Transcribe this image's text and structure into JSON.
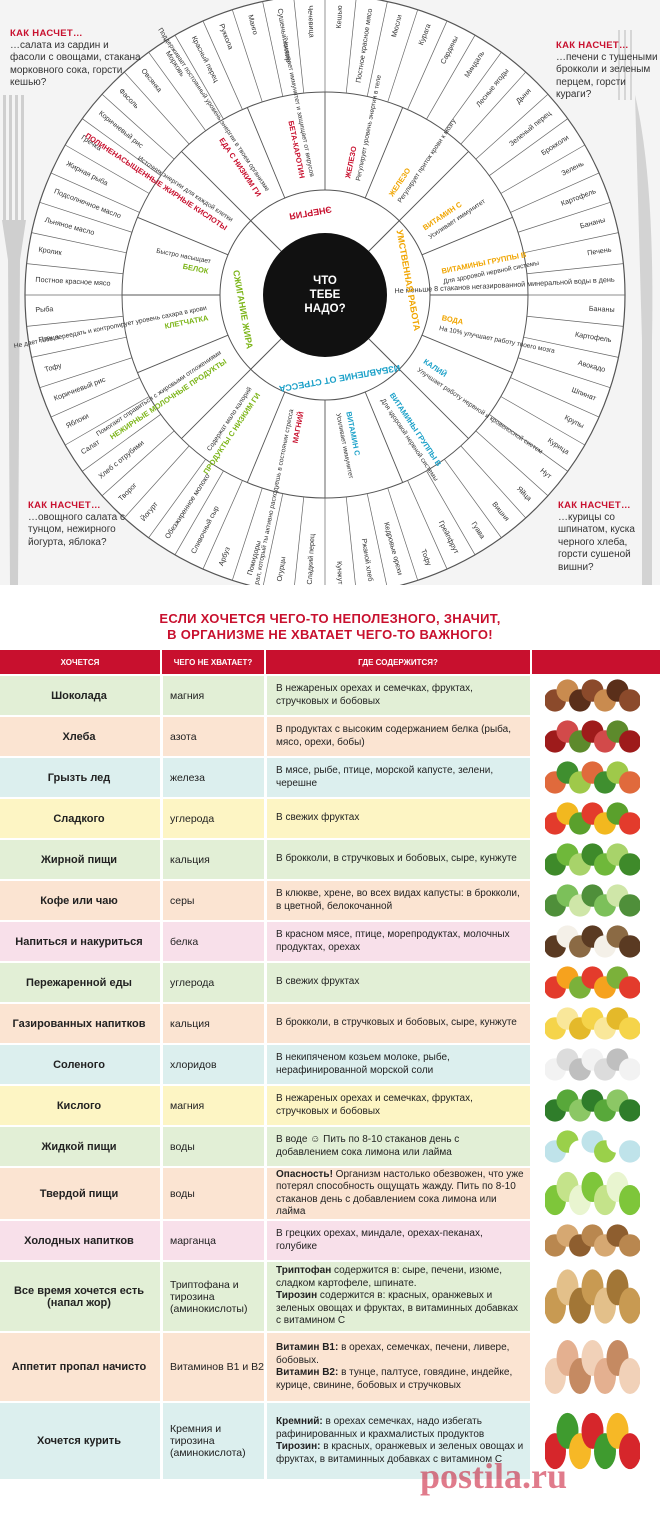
{
  "wheel": {
    "center": [
      "ЧТО",
      "ТЕБЕ",
      "НАДО?"
    ],
    "categories": [
      "УМСТВЕННАЯ РАБОТА",
      "ИЗБАВЛЕНИЕ ОТ СТРЕССА",
      "СЖИГАНИЕ ЖИРА",
      "ЭНЕРГИЯ"
    ],
    "corners": {
      "tl": {
        "title": "КАК НАСЧЕТ…",
        "text": "…салата из сардин и фасоли с овощами, стакана морковного сока, горсти кешью?"
      },
      "tr": {
        "title": "КАК НАСЧЕТ…",
        "text": "…печени с тушеными брокколи и зеленым перцем, горсти кураги?"
      },
      "bl": {
        "title": "КАК НАСЧЕТ…",
        "text": "…овощного салата с тунцом, нежирного йогурта, яблока?"
      },
      "br": {
        "title": "КАК НАСЧЕТ…",
        "text": "…курицы со шпинатом, куска черного хлеба, горсти сушеной вишни?"
      }
    },
    "nutrients": [
      {
        "name": "ЖЕЛЕЗО",
        "desc": "Регулирует уровень энергии в теле",
        "color": "#c8102e"
      },
      {
        "name": "ЖЕЛЕЗО",
        "desc": "Регулирует приток крови к мозгу",
        "color": "#f0a500"
      },
      {
        "name": "ВИТАМИН С",
        "desc": "Усиливает иммунитет",
        "color": "#f0a500"
      },
      {
        "name": "ВИТАМИНЫ ГРУППЫ В",
        "desc": "Для здоровой нервной системы",
        "color": "#f0a500"
      },
      {
        "name": "ВОДА",
        "desc": "На 10% улучшает работу твоего мозга",
        "color": "#f0a500"
      },
      {
        "name": "КАЛИЙ",
        "desc": "Улучшает работу нервной и кровеносной систем",
        "color": "#1aa0c8"
      },
      {
        "name": "ВИТАМИНЫ ГРУППЫ В",
        "desc": "Для здоровой нервной системы",
        "color": "#1aa0c8"
      },
      {
        "name": "ВИТАМИН С",
        "desc": "Усиливает иммунитет",
        "color": "#1aa0c8"
      },
      {
        "name": "МАГНИЙ",
        "desc": "Минерал, который ты активно расходуешь в состоянии стресса",
        "color": "#c8102e"
      },
      {
        "name": "ПРОДУКТЫ С НИЗКИМ ГИ",
        "desc": "Содержат мало калорий",
        "color": "#7cb518"
      },
      {
        "name": "НЕЖИРНЫЕ МОЛОЧНЫЕ ПРОДУКТЫ",
        "desc": "Помогают справиться с жировыми отложениями",
        "color": "#7cb518"
      },
      {
        "name": "КЛЕТЧАТКА",
        "desc": "Не дает тебе переедать и контролирует уровень сахара в крови",
        "color": "#7cb518"
      },
      {
        "name": "БЕЛОК",
        "desc": "Быстро насыщает",
        "color": "#7cb518"
      },
      {
        "name": "ПОЛИНЕНАСЫЩЕННЫЕ ЖИРНЫЕ КИСЛОТЫ",
        "desc": "Источник энергии для каждой клетки",
        "color": "#c8102e"
      },
      {
        "name": "ЕДА С НИЗКИМ ГИ",
        "desc": "Поддерживает постоянный уровень энергии в твоем организме",
        "color": "#c8102e"
      },
      {
        "name": "БЕТА-КАРОТИН",
        "desc": "Усиливает иммунитет и защищает от вирусов",
        "color": "#c8102e"
      }
    ],
    "foods": [
      "Кешью",
      "Постное красное мясо",
      "Мюсли",
      "Курага",
      "Сардины",
      "Миндаль",
      "Лесные ягоды",
      "Дыня",
      "Зеленый перец",
      "Брокколи",
      "Зелень",
      "Картофель",
      "Бананы",
      "Печень",
      "Не меньше 8 стаканов негазированной минеральной воды в день",
      "Бананы",
      "Картофель",
      "Авокадо",
      "Шпинат",
      "Крупы",
      "Курица",
      "Нут",
      "Яйца",
      "Вишня",
      "Гуава",
      "Грейпфрут",
      "Тофу",
      "Кедровые орехи",
      "Ржаной хлеб",
      "Кунжут",
      "Сладкий перец",
      "Огурцы",
      "Помидоры",
      "Арбуз",
      "Сливочный сыр",
      "Обезжиренное молоко",
      "Йогурт",
      "Творог",
      "Хлеб с отрубями",
      "Салат",
      "Яблоки",
      "Коричневый рис",
      "Тофу",
      "Птица",
      "Рыба",
      "Постное красное мясо",
      "Кролик",
      "Льняное масло",
      "Подсолнечное масло",
      "Жирная рыба",
      "Гречка",
      "Коричневый рис",
      "Фасоль",
      "Овсянка",
      "Морковь",
      "Красный перец",
      "Руккола",
      "Манго",
      "Сушеный инжир",
      "Чечевица"
    ]
  },
  "table": {
    "heading": [
      "ЕСЛИ ХОЧЕТСЯ ЧЕГО-ТО НЕПОЛЕЗНОГО, ЗНАЧИТ,",
      "В ОРГАНИЗМЕ НЕ ХВАТАЕТ ЧЕГО-ТО ВАЖНОГО!"
    ],
    "headers": [
      "ХОЧЕТСЯ",
      "ЧЕГО НЕ ХВАТАЕТ?",
      "ГДЕ СОДЕРЖИТСЯ?"
    ],
    "rows": [
      {
        "want": "Шоколада",
        "lack": "магния",
        "where": "В нежареных орехах и семечках, фруктах, стручковых и бобовых",
        "color": "#e2efd6",
        "food_icon": "nuts-icon"
      },
      {
        "want": "Хлеба",
        "lack": "азота",
        "where": "В продуктах с высоким содержанием белка (рыба, мясо, орехи, бобы)",
        "color": "#fbe4d2",
        "food_icon": "meat-icon"
      },
      {
        "want": "Грызть лед",
        "lack": "железа",
        "where": "В мясе, рыбе, птице, морской капусте, зелени, черешне",
        "color": "#dcefee",
        "food_icon": "fish-greens-icon"
      },
      {
        "want": "Сладкого",
        "lack": "углерода",
        "where": "В свежих фруктах",
        "color": "#fdf5c4",
        "food_icon": "fruits-icon"
      },
      {
        "want": "Жирной пищи",
        "lack": "кальция",
        "where": "В брокколи, в стручковых и бобовых, сыре, кунжуте",
        "color": "#e2efd6",
        "food_icon": "peas-icon"
      },
      {
        "want": "Кофе или чаю",
        "lack": "серы",
        "where": "В клюкве, хрене, во всех видах капусты: в брокколи, в цветной, белокочанной",
        "color": "#fbe4d2",
        "food_icon": "cabbage-icon"
      },
      {
        "want": "Напиться и накуриться",
        "lack": "белка",
        "where": "В красном мясе, птице, морепродуктах, молочных продуктах, орехах",
        "color": "#f8e0ea",
        "food_icon": "coconut-icon"
      },
      {
        "want": "Пережаренной еды",
        "lack": "углерода",
        "where": "В свежих фруктах",
        "color": "#e2efd6",
        "food_icon": "fruits-icon"
      },
      {
        "want": "Газированных напитков",
        "lack": "кальция",
        "where": "В брокколи, в стручковых и бобовых, сыре, кунжуте",
        "color": "#fbe4d2",
        "food_icon": "cheese-icon"
      },
      {
        "want": "Соленого",
        "lack": "хлоридов",
        "where": "В некипяченом козьем молоке, рыбе, нерафинированной морской соли",
        "color": "#dcefee",
        "food_icon": "milk-icon"
      },
      {
        "want": "Кислого",
        "lack": "магния",
        "where": "В нежареных орехах и семечках, фруктах, стручковых и бобовых",
        "color": "#fdf5c4",
        "food_icon": "broccoli-icon"
      },
      {
        "want": "Жидкой пищи",
        "lack": "воды",
        "where": "В воде ☺ Пить по 8-10 стаканов день с добавлением сока лимона или лайма",
        "color": "#e2efd6",
        "food_icon": "water-glass-icon"
      },
      {
        "want": "Твердой пищи",
        "lack": "воды",
        "where_bold": "Опасность!",
        "where": " Организм настолько обезвожен, что уже потерял способность ощущать жажду. Пить по 8-10 стаканов день с добавлением сока лимона или лайма",
        "color": "#fbe4d2",
        "food_icon": "lime-icon"
      },
      {
        "want": "Холодных напитков",
        "lack": "марганца",
        "where": "В грецких орехах, миндале, орехах-пеканах, голубике",
        "color": "#f8e0ea",
        "food_icon": "almonds-icon"
      },
      {
        "want": "Все время хочется есть (напал жор)",
        "lack": "Триптофана и тирозина (аминокислоты)",
        "where_parts": [
          [
            "Триптофан",
            " содержится в: сыре, печени, изюме, сладком картофеле, шпинате."
          ],
          [
            "Тирозин",
            " содержится в: красных, оранжевых и зеленых овощах и фруктах, в витаминных добавках с витамином С"
          ]
        ],
        "color": "#e2efd6",
        "food_icon": "potatoes-icon"
      },
      {
        "want": "Аппетит пропал начисто",
        "lack": "Витаминов В1 и В2",
        "where_parts": [
          [
            "Витамин В1:",
            " в орехах, семечках, печени, ливере, бобовых."
          ],
          [
            "Витамин В2:",
            " в тунце, палтусе, говядине, индейке, курице, свинине, бобовых и стручковых"
          ]
        ],
        "color": "#fbe4d2",
        "food_icon": "chicken-icon"
      },
      {
        "want": "Хочется курить",
        "lack": "Кремния и тирозина (аминокислота)",
        "where_parts": [
          [
            "Кремний:",
            " в орехах семечках, надо избегать рафинированных и крахмалистых продуктов"
          ],
          [
            "Тирозин:",
            " в красных, оранжевых и зеленых овощах и фруктах, в витаминных добавках с витамином С"
          ]
        ],
        "color": "#dcefee",
        "food_icon": "vegetables-icon"
      }
    ]
  },
  "watermark": "postila.ru"
}
